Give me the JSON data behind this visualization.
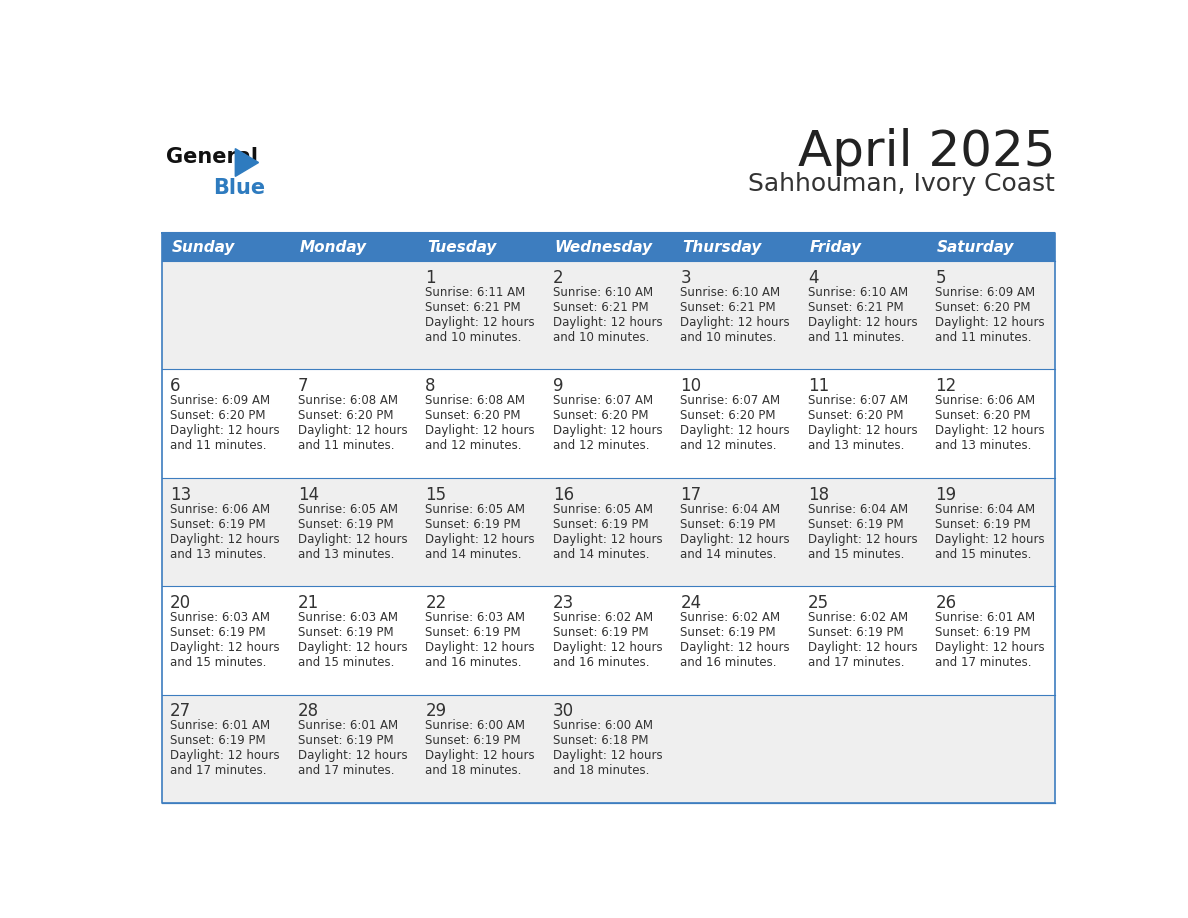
{
  "title": "April 2025",
  "subtitle": "Sahhouman, Ivory Coast",
  "days_of_week": [
    "Sunday",
    "Monday",
    "Tuesday",
    "Wednesday",
    "Thursday",
    "Friday",
    "Saturday"
  ],
  "header_bg": "#3d7dbf",
  "header_text": "#ffffff",
  "row_bg_even": "#efefef",
  "row_bg_odd": "#ffffff",
  "cell_border_color": "#3d7dbf",
  "day_num_color": "#333333",
  "info_color": "#333333",
  "title_color": "#222222",
  "subtitle_color": "#333333",
  "logo_general_color": "#111111",
  "logo_blue_color": "#2e7bbf",
  "calendar_data": [
    [
      null,
      null,
      {
        "day": 1,
        "sunrise": "6:11 AM",
        "sunset": "6:21 PM",
        "daylight": "12 hours",
        "daylight2": "and 10 minutes."
      },
      {
        "day": 2,
        "sunrise": "6:10 AM",
        "sunset": "6:21 PM",
        "daylight": "12 hours",
        "daylight2": "and 10 minutes."
      },
      {
        "day": 3,
        "sunrise": "6:10 AM",
        "sunset": "6:21 PM",
        "daylight": "12 hours",
        "daylight2": "and 10 minutes."
      },
      {
        "day": 4,
        "sunrise": "6:10 AM",
        "sunset": "6:21 PM",
        "daylight": "12 hours",
        "daylight2": "and 11 minutes."
      },
      {
        "day": 5,
        "sunrise": "6:09 AM",
        "sunset": "6:20 PM",
        "daylight": "12 hours",
        "daylight2": "and 11 minutes."
      }
    ],
    [
      {
        "day": 6,
        "sunrise": "6:09 AM",
        "sunset": "6:20 PM",
        "daylight": "12 hours",
        "daylight2": "and 11 minutes."
      },
      {
        "day": 7,
        "sunrise": "6:08 AM",
        "sunset": "6:20 PM",
        "daylight": "12 hours",
        "daylight2": "and 11 minutes."
      },
      {
        "day": 8,
        "sunrise": "6:08 AM",
        "sunset": "6:20 PM",
        "daylight": "12 hours",
        "daylight2": "and 12 minutes."
      },
      {
        "day": 9,
        "sunrise": "6:07 AM",
        "sunset": "6:20 PM",
        "daylight": "12 hours",
        "daylight2": "and 12 minutes."
      },
      {
        "day": 10,
        "sunrise": "6:07 AM",
        "sunset": "6:20 PM",
        "daylight": "12 hours",
        "daylight2": "and 12 minutes."
      },
      {
        "day": 11,
        "sunrise": "6:07 AM",
        "sunset": "6:20 PM",
        "daylight": "12 hours",
        "daylight2": "and 13 minutes."
      },
      {
        "day": 12,
        "sunrise": "6:06 AM",
        "sunset": "6:20 PM",
        "daylight": "12 hours",
        "daylight2": "and 13 minutes."
      }
    ],
    [
      {
        "day": 13,
        "sunrise": "6:06 AM",
        "sunset": "6:19 PM",
        "daylight": "12 hours",
        "daylight2": "and 13 minutes."
      },
      {
        "day": 14,
        "sunrise": "6:05 AM",
        "sunset": "6:19 PM",
        "daylight": "12 hours",
        "daylight2": "and 13 minutes."
      },
      {
        "day": 15,
        "sunrise": "6:05 AM",
        "sunset": "6:19 PM",
        "daylight": "12 hours",
        "daylight2": "and 14 minutes."
      },
      {
        "day": 16,
        "sunrise": "6:05 AM",
        "sunset": "6:19 PM",
        "daylight": "12 hours",
        "daylight2": "and 14 minutes."
      },
      {
        "day": 17,
        "sunrise": "6:04 AM",
        "sunset": "6:19 PM",
        "daylight": "12 hours",
        "daylight2": "and 14 minutes."
      },
      {
        "day": 18,
        "sunrise": "6:04 AM",
        "sunset": "6:19 PM",
        "daylight": "12 hours",
        "daylight2": "and 15 minutes."
      },
      {
        "day": 19,
        "sunrise": "6:04 AM",
        "sunset": "6:19 PM",
        "daylight": "12 hours",
        "daylight2": "and 15 minutes."
      }
    ],
    [
      {
        "day": 20,
        "sunrise": "6:03 AM",
        "sunset": "6:19 PM",
        "daylight": "12 hours",
        "daylight2": "and 15 minutes."
      },
      {
        "day": 21,
        "sunrise": "6:03 AM",
        "sunset": "6:19 PM",
        "daylight": "12 hours",
        "daylight2": "and 15 minutes."
      },
      {
        "day": 22,
        "sunrise": "6:03 AM",
        "sunset": "6:19 PM",
        "daylight": "12 hours",
        "daylight2": "and 16 minutes."
      },
      {
        "day": 23,
        "sunrise": "6:02 AM",
        "sunset": "6:19 PM",
        "daylight": "12 hours",
        "daylight2": "and 16 minutes."
      },
      {
        "day": 24,
        "sunrise": "6:02 AM",
        "sunset": "6:19 PM",
        "daylight": "12 hours",
        "daylight2": "and 16 minutes."
      },
      {
        "day": 25,
        "sunrise": "6:02 AM",
        "sunset": "6:19 PM",
        "daylight": "12 hours",
        "daylight2": "and 17 minutes."
      },
      {
        "day": 26,
        "sunrise": "6:01 AM",
        "sunset": "6:19 PM",
        "daylight": "12 hours",
        "daylight2": "and 17 minutes."
      }
    ],
    [
      {
        "day": 27,
        "sunrise": "6:01 AM",
        "sunset": "6:19 PM",
        "daylight": "12 hours",
        "daylight2": "and 17 minutes."
      },
      {
        "day": 28,
        "sunrise": "6:01 AM",
        "sunset": "6:19 PM",
        "daylight": "12 hours",
        "daylight2": "and 17 minutes."
      },
      {
        "day": 29,
        "sunrise": "6:00 AM",
        "sunset": "6:19 PM",
        "daylight": "12 hours",
        "daylight2": "and 18 minutes."
      },
      {
        "day": 30,
        "sunrise": "6:00 AM",
        "sunset": "6:18 PM",
        "daylight": "12 hours",
        "daylight2": "and 18 minutes."
      },
      null,
      null,
      null
    ]
  ]
}
